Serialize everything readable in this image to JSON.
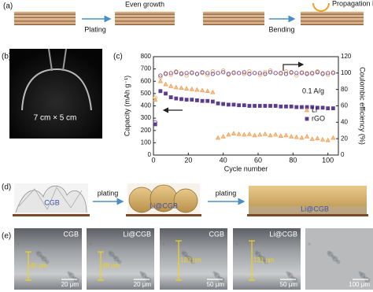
{
  "panels": {
    "a": {
      "label": "(a)",
      "plating": "Plating",
      "even_growth": "Even growth",
      "bending": "Bending",
      "propagation": "Propagation inhibite"
    },
    "b": {
      "label": "(b)",
      "size": "7 cm × 5 cm"
    },
    "d": {
      "label": "(d)",
      "cgb": "CGB",
      "plating_1": "plating",
      "li_cgb_1": "Li@CGB",
      "plating_2": "plating",
      "li_cgb_2": "Li@CGB"
    },
    "e": {
      "label": "(e)",
      "images": [
        {
          "name": "CGB",
          "thickness": "45 μm",
          "scale": "20 μm"
        },
        {
          "name": "Li@CGB",
          "thickness": "48 μm",
          "scale": "20 μm"
        },
        {
          "name": "CGB",
          "thickness": "120 μm",
          "scale": "50 μm"
        },
        {
          "name": "Li@CGB",
          "thickness": "131 μm",
          "scale": "50 μm"
        },
        {
          "scale": "100 μm"
        }
      ]
    }
  },
  "chart_data": {
    "type": "scatter",
    "panel_label": "(c)",
    "xlabel": "Cycle number",
    "ylabel": "Capacity (mAh g⁻¹)",
    "y2label": "Coulombic efficiency (%)",
    "annotation": "0.1 A/g",
    "xlim": [
      0,
      106
    ],
    "xticks": [
      0,
      20,
      40,
      60,
      80,
      100
    ],
    "ylim": [
      0,
      800
    ],
    "yticks": [
      0,
      100,
      200,
      300,
      400,
      500,
      600,
      700,
      800
    ],
    "y2lim": [
      0,
      120
    ],
    "y2ticks": [
      0,
      20,
      40,
      60,
      80,
      100,
      120
    ],
    "x": [
      1,
      4,
      7,
      10,
      13,
      16,
      19,
      22,
      25,
      28,
      31,
      34,
      37,
      40,
      43,
      46,
      49,
      52,
      55,
      58,
      61,
      64,
      67,
      70,
      73,
      76,
      79,
      82,
      85,
      88,
      91,
      94,
      97,
      100,
      103
    ],
    "series": [
      {
        "name": "Li",
        "color": "#f29a4a",
        "marker": "triangle",
        "values": [
          450,
          600,
          575,
          560,
          550,
          545,
          540,
          535,
          530,
          525,
          520,
          510,
          140,
          150,
          165,
          175,
          170,
          165,
          170,
          160,
          165,
          170,
          160,
          165,
          155,
          160,
          150,
          145,
          140,
          150,
          130,
          135,
          125,
          120,
          140
        ]
      },
      {
        "name": "rGO",
        "color": "#5b3c8f",
        "marker": "square",
        "values": [
          250,
          520,
          500,
          470,
          460,
          455,
          450,
          450,
          445,
          440,
          440,
          435,
          420,
          415,
          410,
          410,
          405,
          405,
          400,
          400,
          400,
          400,
          400,
          400,
          395,
          395,
          395,
          390,
          390,
          390,
          390,
          385,
          385,
          380,
          380
        ]
      },
      {
        "color": "#f29a4a",
        "marker": "circle",
        "axis": "y2",
        "values": [
          70,
          95,
          100,
          98,
          102,
          100,
          97,
          101,
          99,
          100,
          98,
          102,
          100,
          103,
          98,
          101,
          100,
          99,
          102,
          100,
          98,
          101,
          103,
          100,
          99,
          102,
          100,
          97,
          101,
          100,
          99,
          102,
          100,
          98,
          101
        ]
      },
      {
        "color": "#5b3c8f",
        "marker": "circle",
        "axis": "y2",
        "values": [
          40,
          97,
          99,
          100,
          101,
          99,
          100,
          100,
          99,
          101,
          100,
          99,
          100,
          101,
          99,
          100,
          100,
          101,
          99,
          100,
          100,
          99,
          101,
          100,
          100,
          99,
          101,
          100,
          100,
          99,
          100,
          101,
          99,
          100,
          100
        ]
      }
    ]
  }
}
